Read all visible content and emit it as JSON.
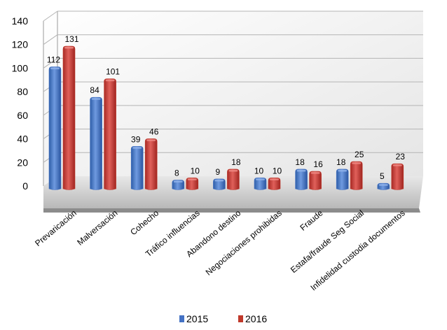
{
  "chart_data": {
    "type": "bar",
    "title": "",
    "xlabel": "",
    "ylabel": "",
    "ylim": [
      0,
      140
    ],
    "yticks": [
      0,
      20,
      40,
      60,
      80,
      100,
      120,
      140
    ],
    "grid": true,
    "legend_position": "bottom",
    "categories": [
      "Prevaricación",
      "Malversación",
      "Cohecho",
      "Tráfico influencias",
      "Abandono destino",
      "Negociaciones prohibidas",
      "Fraude",
      "Estafa/fraude Seg Social",
      "Infidelidad custodia documentos"
    ],
    "series": [
      {
        "name": "2015",
        "color": "#4472c4",
        "values": [
          112,
          84,
          39,
          8,
          9,
          10,
          18,
          18,
          5
        ]
      },
      {
        "name": "2016",
        "color": "#c0392b",
        "values": [
          131,
          101,
          46,
          10,
          18,
          10,
          16,
          25,
          23
        ]
      }
    ]
  }
}
